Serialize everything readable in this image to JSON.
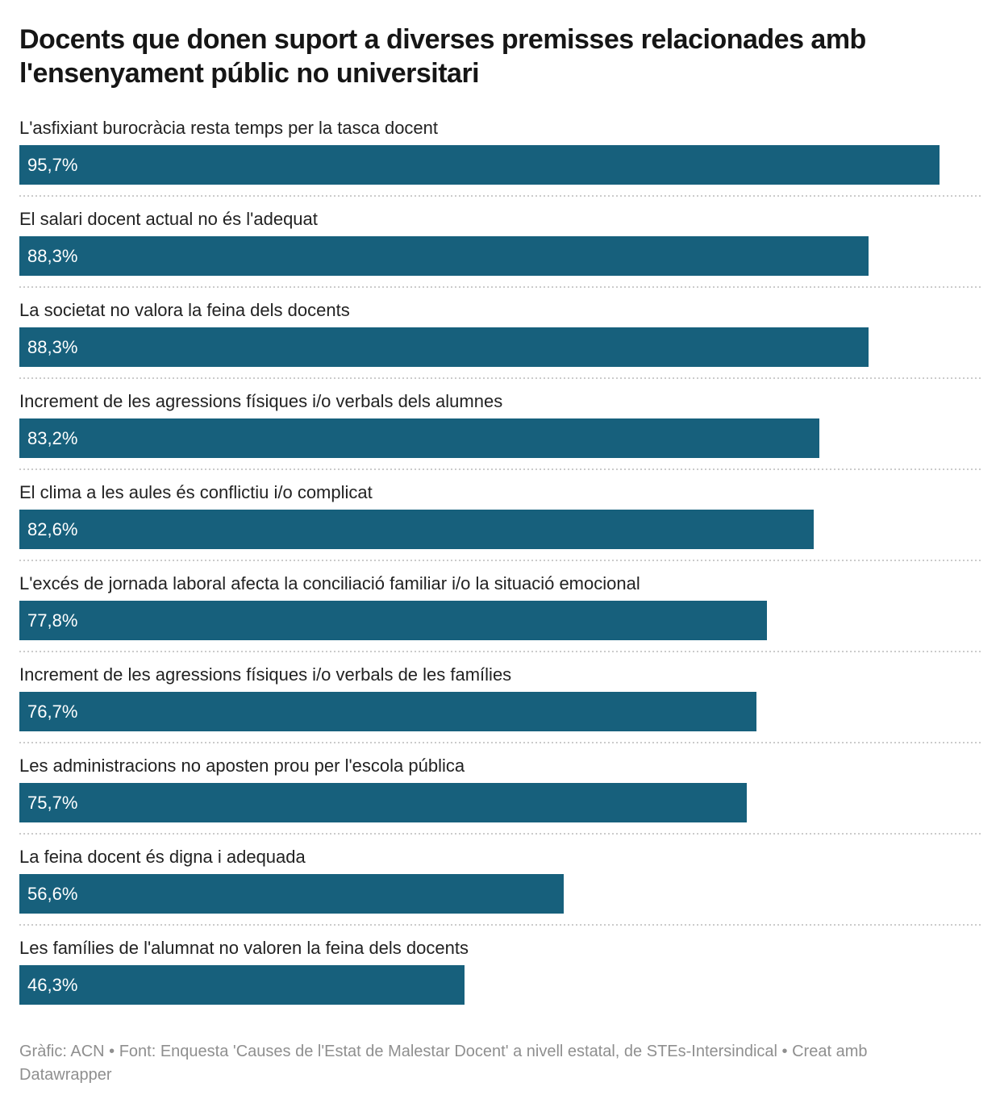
{
  "title": "Docents que donen suport a diverses premisses relacionades amb l'ensenyament públic no universitari",
  "footer": "Gràfic: ACN • Font: Enquesta 'Causes de l'Estat de Malestar Docent' a nivell estatal, de STEs-Intersindical • Creat amb Datawrapper",
  "colors": {
    "bar": "#17607c",
    "title": "#161616",
    "category_label": "#222222",
    "value_label": "#ffffff",
    "separator": "#cbcbcb",
    "footer": "#8f8f8f",
    "background": "#ffffff"
  },
  "chart_data": {
    "type": "bar",
    "orientation": "horizontal",
    "title": "Docents que donen suport a diverses premisses relacionades amb l'ensenyament públic no universitari",
    "xlabel": "",
    "ylabel": "",
    "xlim": [
      0,
      100
    ],
    "grid": false,
    "legend": false,
    "unit": "%",
    "decimal_separator": ",",
    "categories": [
      "L'asfixiant burocràcia resta temps per la tasca docent",
      "El salari docent actual no és l'adequat",
      "La societat no valora la feina dels docents",
      "Increment de les agressions físiques i/o verbals dels alumnes",
      "El clima a les aules és conflictiu i/o complicat",
      "L'excés de jornada laboral afecta la conciliació familiar i/o la situació emocional",
      "Increment de les agressions físiques i/o verbals de les famílies",
      "Les administracions no aposten prou per l'escola pública",
      "La feina docent és digna i adequada",
      "Les famílies de l'alumnat no valoren la feina dels docents"
    ],
    "values": [
      95.7,
      88.3,
      88.3,
      83.2,
      82.6,
      77.8,
      76.7,
      75.7,
      56.6,
      46.3
    ],
    "value_labels": [
      "95,7%",
      "88,3%",
      "88,3%",
      "83,2%",
      "82,6%",
      "77,8%",
      "76,7%",
      "75,7%",
      "56,6%",
      "46,3%"
    ]
  }
}
